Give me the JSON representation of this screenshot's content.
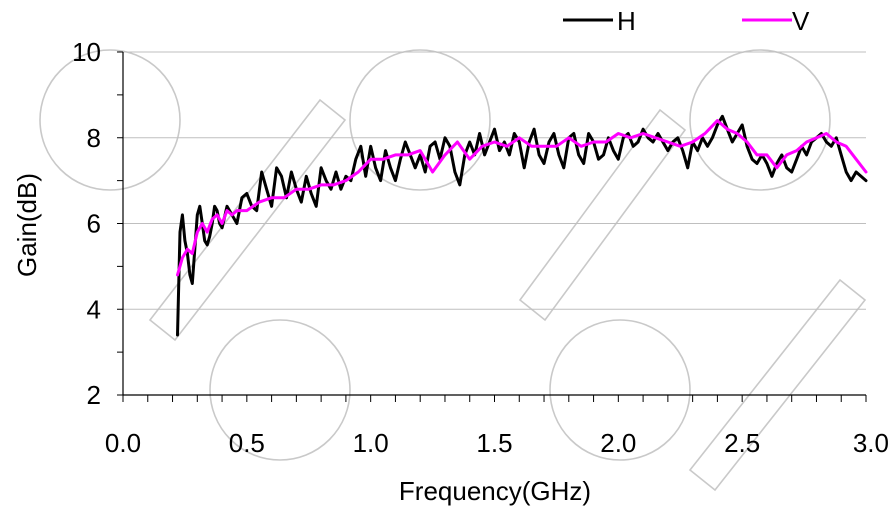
{
  "chart_data": {
    "type": "line",
    "xlabel": "Frequency(GHz)",
    "ylabel": "Gain(dB)",
    "xlim": [
      0.0,
      3.0
    ],
    "ylim": [
      2,
      10
    ],
    "xticks": [
      0.0,
      0.5,
      1.0,
      1.5,
      2.0,
      2.5,
      3.0
    ],
    "xtick_labels": [
      "0.0",
      "0.5",
      "1.0",
      "1.5",
      "2.0",
      "2.5",
      "3.0"
    ],
    "yticks": [
      2,
      4,
      6,
      8,
      10
    ],
    "ytick_labels": [
      "2",
      "4",
      "6",
      "8",
      "10"
    ],
    "grid": "horizontal",
    "legend_position": "top-right",
    "series": [
      {
        "name": "H",
        "color": "#000000",
        "x": [
          0.22,
          0.23,
          0.24,
          0.25,
          0.26,
          0.27,
          0.28,
          0.29,
          0.3,
          0.31,
          0.32,
          0.33,
          0.34,
          0.35,
          0.36,
          0.37,
          0.38,
          0.39,
          0.4,
          0.42,
          0.44,
          0.46,
          0.48,
          0.5,
          0.52,
          0.54,
          0.56,
          0.58,
          0.6,
          0.62,
          0.64,
          0.66,
          0.68,
          0.7,
          0.72,
          0.74,
          0.76,
          0.78,
          0.8,
          0.82,
          0.84,
          0.86,
          0.88,
          0.9,
          0.92,
          0.94,
          0.96,
          0.98,
          1.0,
          1.02,
          1.04,
          1.06,
          1.08,
          1.1,
          1.12,
          1.14,
          1.16,
          1.18,
          1.2,
          1.22,
          1.24,
          1.26,
          1.28,
          1.3,
          1.32,
          1.34,
          1.36,
          1.38,
          1.4,
          1.42,
          1.44,
          1.46,
          1.48,
          1.5,
          1.52,
          1.54,
          1.56,
          1.58,
          1.6,
          1.62,
          1.64,
          1.66,
          1.68,
          1.7,
          1.72,
          1.74,
          1.76,
          1.78,
          1.8,
          1.82,
          1.84,
          1.86,
          1.88,
          1.9,
          1.92,
          1.94,
          1.96,
          1.98,
          2.0,
          2.02,
          2.04,
          2.06,
          2.08,
          2.1,
          2.12,
          2.14,
          2.16,
          2.18,
          2.2,
          2.22,
          2.24,
          2.26,
          2.28,
          2.3,
          2.32,
          2.34,
          2.36,
          2.38,
          2.4,
          2.42,
          2.44,
          2.46,
          2.48,
          2.5,
          2.52,
          2.54,
          2.56,
          2.58,
          2.6,
          2.62,
          2.64,
          2.66,
          2.68,
          2.7,
          2.72,
          2.74,
          2.76,
          2.78,
          2.8,
          2.82,
          2.84,
          2.86,
          2.88,
          2.9,
          2.92,
          2.94,
          2.96,
          2.98,
          3.0
        ],
        "y": [
          3.4,
          5.8,
          6.2,
          5.6,
          5.3,
          4.8,
          4.6,
          5.4,
          6.2,
          6.4,
          6.0,
          5.6,
          5.5,
          5.7,
          6.0,
          6.4,
          6.3,
          6.0,
          5.9,
          6.4,
          6.2,
          6.0,
          6.6,
          6.7,
          6.4,
          6.3,
          7.2,
          6.8,
          6.4,
          7.3,
          7.1,
          6.6,
          7.2,
          6.8,
          6.5,
          7.1,
          6.7,
          6.4,
          7.3,
          7.0,
          6.8,
          7.2,
          6.8,
          7.1,
          7.0,
          7.5,
          7.8,
          7.1,
          7.8,
          7.3,
          7.0,
          7.7,
          7.3,
          7.0,
          7.5,
          7.9,
          7.6,
          7.3,
          7.6,
          7.2,
          7.8,
          7.9,
          7.5,
          8.0,
          7.8,
          7.2,
          6.9,
          7.6,
          7.9,
          7.6,
          8.1,
          7.6,
          7.9,
          8.2,
          7.7,
          7.9,
          7.6,
          8.1,
          7.9,
          7.3,
          7.9,
          8.2,
          7.6,
          7.4,
          7.9,
          8.1,
          7.6,
          7.3,
          8.0,
          8.1,
          7.6,
          7.4,
          8.1,
          7.9,
          7.5,
          7.6,
          8.0,
          7.7,
          7.5,
          8.0,
          8.1,
          7.8,
          7.9,
          8.2,
          8.0,
          7.9,
          8.1,
          7.9,
          7.7,
          7.9,
          8.0,
          7.7,
          7.3,
          7.9,
          7.7,
          8.0,
          7.8,
          8.0,
          8.3,
          8.5,
          8.2,
          7.9,
          8.1,
          8.3,
          7.8,
          7.5,
          7.4,
          7.6,
          7.4,
          7.1,
          7.4,
          7.6,
          7.3,
          7.2,
          7.5,
          7.8,
          7.6,
          7.9,
          8.0,
          8.1,
          7.9,
          7.8,
          8.0,
          7.6,
          7.2,
          7.0,
          7.2,
          7.1,
          7.0
        ]
      },
      {
        "name": "V",
        "color": "#ff00ff",
        "x": [
          0.22,
          0.24,
          0.26,
          0.28,
          0.3,
          0.32,
          0.34,
          0.36,
          0.38,
          0.4,
          0.42,
          0.44,
          0.46,
          0.48,
          0.5,
          0.55,
          0.6,
          0.65,
          0.7,
          0.75,
          0.8,
          0.85,
          0.9,
          0.95,
          1.0,
          1.05,
          1.1,
          1.15,
          1.2,
          1.25,
          1.3,
          1.35,
          1.4,
          1.45,
          1.5,
          1.55,
          1.6,
          1.65,
          1.7,
          1.75,
          1.8,
          1.85,
          1.9,
          1.95,
          2.0,
          2.05,
          2.1,
          2.15,
          2.2,
          2.25,
          2.3,
          2.35,
          2.4,
          2.44,
          2.48,
          2.52,
          2.56,
          2.6,
          2.64,
          2.68,
          2.72,
          2.76,
          2.8,
          2.84,
          2.88,
          2.92,
          2.96,
          3.0
        ],
        "y": [
          4.8,
          5.2,
          5.4,
          5.3,
          5.8,
          6.0,
          5.8,
          6.1,
          6.2,
          6.0,
          6.3,
          6.2,
          6.3,
          6.3,
          6.3,
          6.5,
          6.6,
          6.6,
          6.8,
          6.8,
          6.9,
          6.9,
          7.0,
          7.2,
          7.5,
          7.5,
          7.6,
          7.6,
          7.7,
          7.2,
          7.6,
          7.9,
          7.5,
          7.8,
          7.9,
          7.8,
          8.0,
          7.8,
          7.8,
          7.8,
          8.0,
          7.8,
          7.9,
          7.9,
          8.1,
          8.0,
          8.1,
          8.0,
          7.9,
          7.8,
          7.9,
          8.1,
          8.4,
          8.2,
          8.1,
          7.9,
          7.6,
          7.6,
          7.3,
          7.6,
          7.7,
          7.9,
          8.0,
          8.1,
          7.9,
          7.8,
          7.5,
          7.2
        ]
      }
    ]
  }
}
